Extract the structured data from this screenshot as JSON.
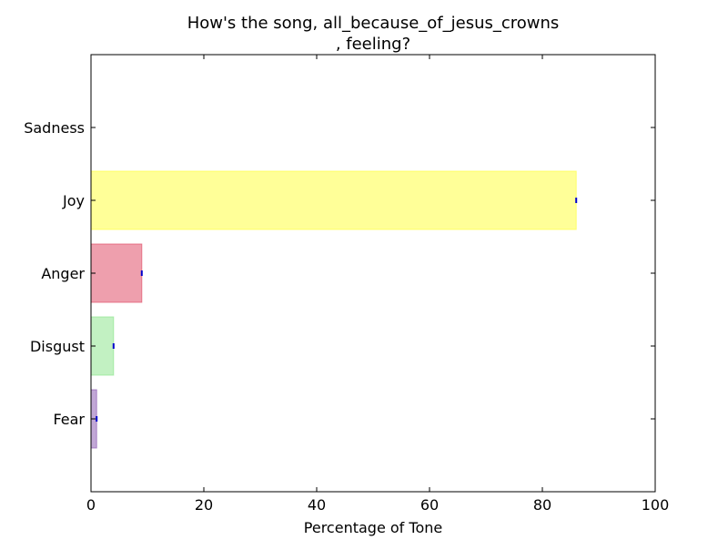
{
  "chart_data": {
    "type": "bar",
    "orientation": "horizontal",
    "title_line1": "How's the song, all_because_of_jesus_crowns",
    "title_line2": ", feeling?",
    "xlabel": "Percentage of Tone",
    "ylabel": "",
    "xlim": [
      0,
      100
    ],
    "x_ticks": [
      0,
      20,
      40,
      60,
      80,
      100
    ],
    "categories": [
      "Fear",
      "Disgust",
      "Anger",
      "Joy",
      "Sadness"
    ],
    "values": [
      1,
      4,
      9,
      86,
      0
    ],
    "colors": {
      "Fear": "#8e5fb5",
      "Disgust": "#90e690",
      "Anger": "#e0506a",
      "Joy": "#ffff44",
      "Sadness": "#6688cc"
    },
    "error_marker_color": "#0000cc",
    "grid": false
  }
}
